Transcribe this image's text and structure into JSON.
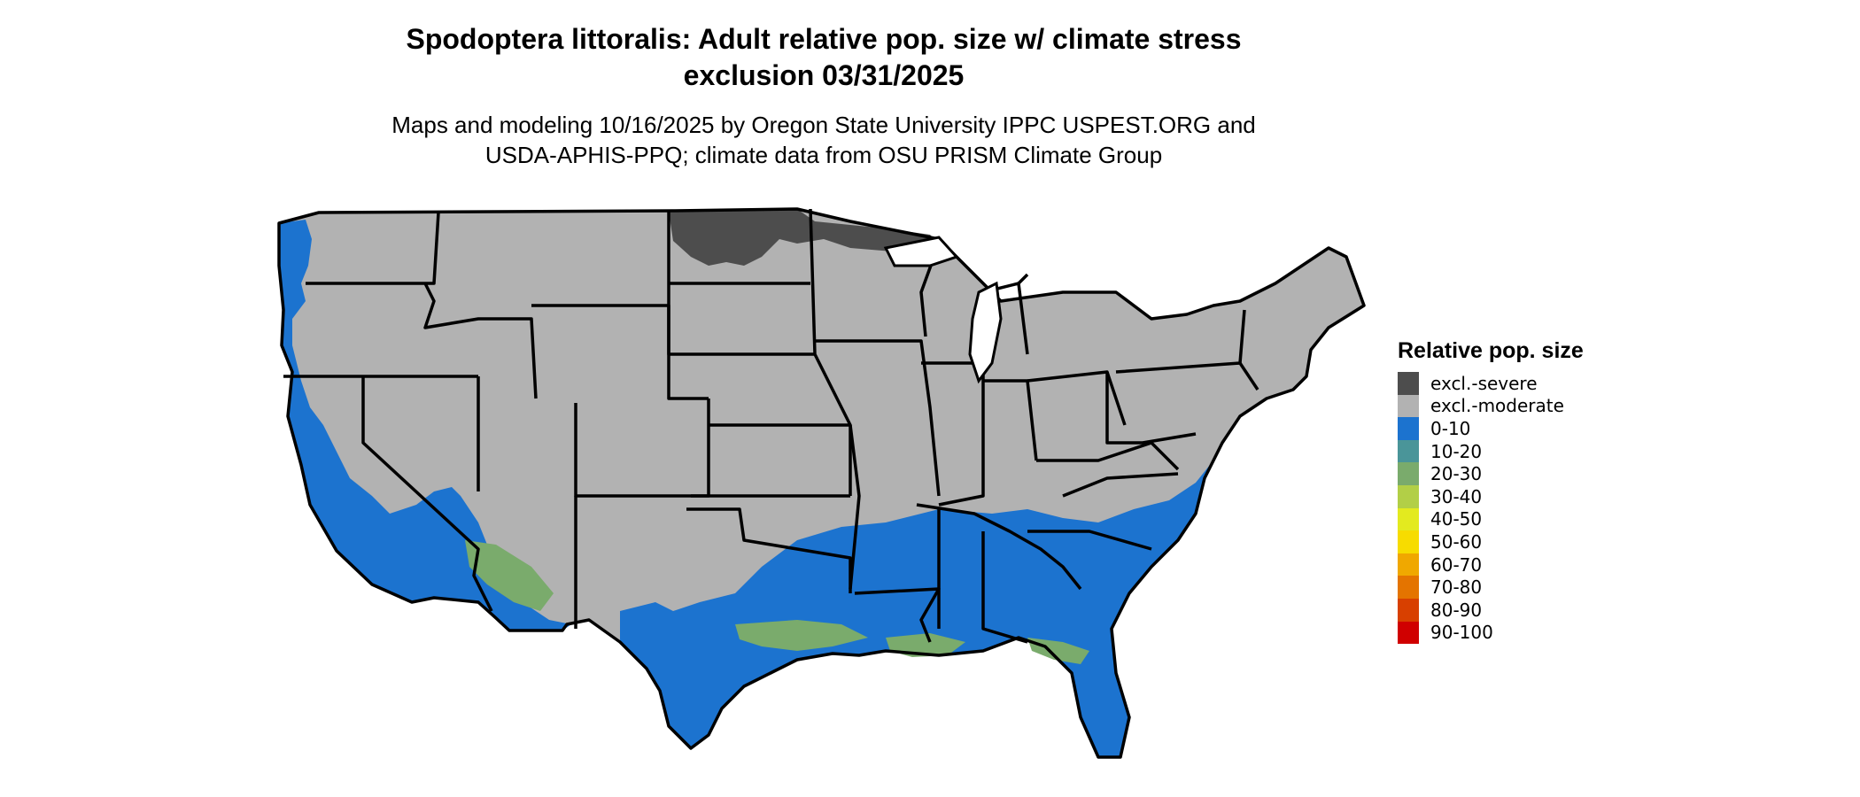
{
  "title_line1": "Spodoptera littoralis: Adult relative pop. size w/ climate stress",
  "title_line2": "exclusion 03/31/2025",
  "subtitle_line1": "Maps and modeling 10/16/2025 by Oregon State University IPPC USPEST.ORG and",
  "subtitle_line2": "USDA-APHIS-PPQ; climate data from OSU PRISM Climate Group",
  "legend": {
    "title": "Relative pop. size",
    "items": [
      {
        "label": "excl.-severe",
        "color": "#4d4d4d"
      },
      {
        "label": "excl.-moderate",
        "color": "#b2b2b2"
      },
      {
        "label": "0-10",
        "color": "#1c73cf"
      },
      {
        "label": "10-20",
        "color": "#4a9599"
      },
      {
        "label": "20-30",
        "color": "#7aab6c"
      },
      {
        "label": "30-40",
        "color": "#b2cf47"
      },
      {
        "label": "40-50",
        "color": "#e3ea1f"
      },
      {
        "label": "50-60",
        "color": "#f7dc00"
      },
      {
        "label": "60-70",
        "color": "#f0a800"
      },
      {
        "label": "70-80",
        "color": "#e47400"
      },
      {
        "label": "80-90",
        "color": "#d84000"
      },
      {
        "label": "90-100",
        "color": "#d00000"
      }
    ]
  },
  "colors": {
    "severe": "#4d4d4d",
    "moderate": "#b2b2b2",
    "low": "#1c73cf",
    "mid": "#7aab6c",
    "border": "#000000"
  }
}
